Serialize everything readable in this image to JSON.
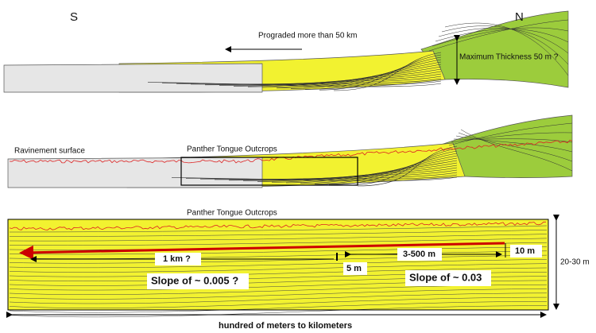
{
  "labels": {
    "south": "S",
    "north": "N"
  },
  "top_panel": {
    "arrow_label": "Prograded more than 50 km",
    "thickness_label": "Maximum Thickness 50 m ?"
  },
  "middle_panel": {
    "surface_label": "Ravinement surface",
    "outcrop_label": "Panther Tongue Outcrops"
  },
  "bottom_panel": {
    "title": "Panther Tongue Outcrops",
    "distances": [
      "1 km ?",
      "3-500 m"
    ],
    "heights": [
      "10 m",
      "5 m"
    ],
    "thickness": "20-30 m",
    "slopes": [
      "Slope of ~ 0.005 ?",
      "Slope of ~ 0.03"
    ],
    "width_label": "hundred of meters to kilometers"
  }
}
